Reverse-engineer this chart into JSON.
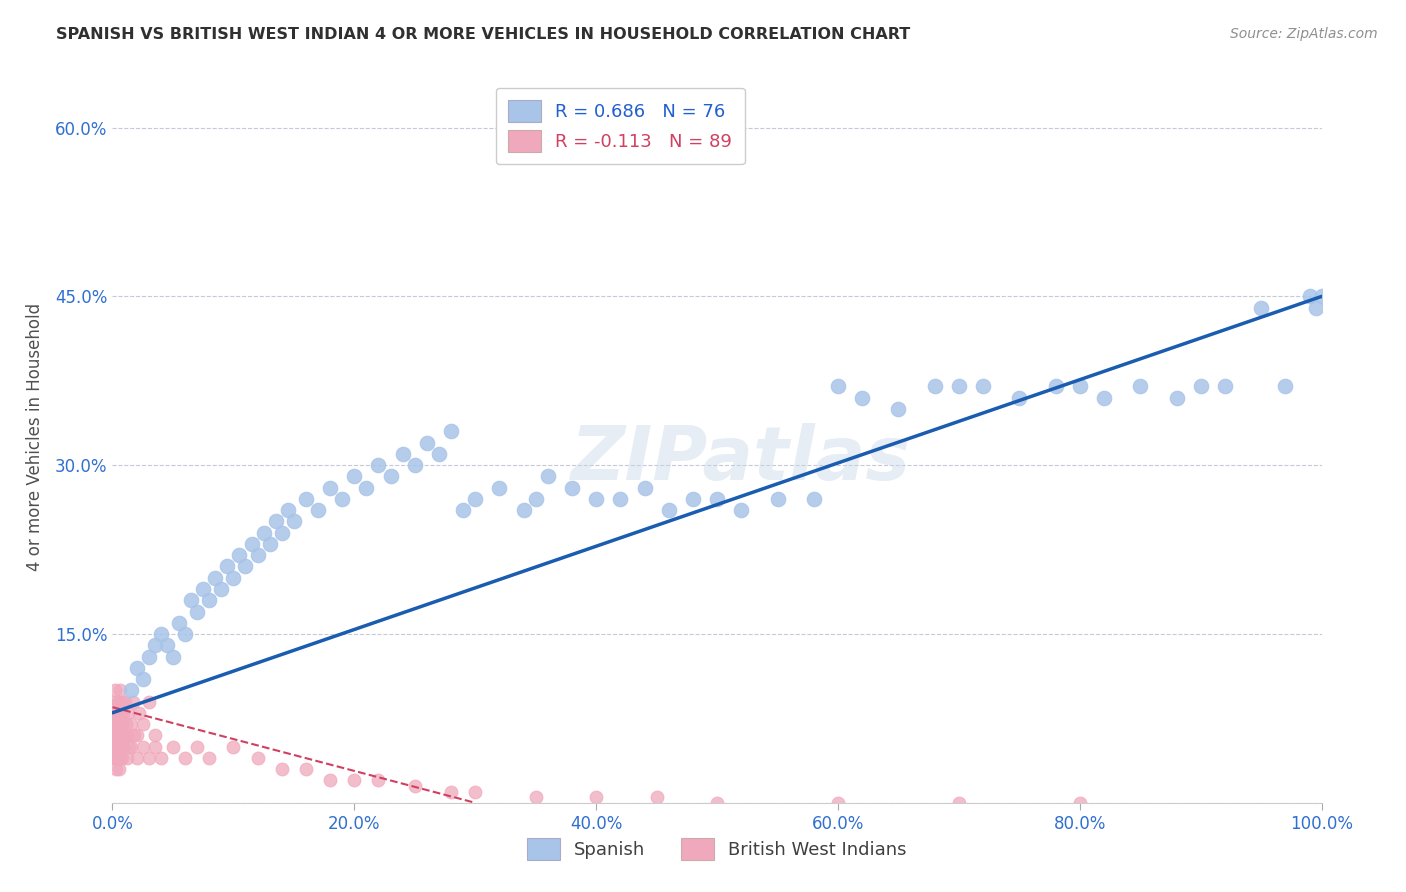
{
  "title": "SPANISH VS BRITISH WEST INDIAN 4 OR MORE VEHICLES IN HOUSEHOLD CORRELATION CHART",
  "source": "Source: ZipAtlas.com",
  "ylabel": "4 or more Vehicles in Household",
  "xlim": [
    0.0,
    100.0
  ],
  "ylim": [
    0.0,
    65.0
  ],
  "xtick_vals": [
    0,
    20,
    40,
    60,
    80,
    100
  ],
  "ytick_vals": [
    0,
    15,
    30,
    45,
    60
  ],
  "xtick_labels": [
    "0.0%",
    "20.0%",
    "40.0%",
    "60.0%",
    "80.0%",
    "100.0%"
  ],
  "ytick_labels": [
    "",
    "15.0%",
    "30.0%",
    "45.0%",
    "60.0%"
  ],
  "blue_R": 0.686,
  "blue_N": 76,
  "pink_R": -0.113,
  "pink_N": 89,
  "legend_labels": [
    "Spanish",
    "British West Indians"
  ],
  "blue_scatter_color": "#a8c4e8",
  "pink_scatter_color": "#f0a8bc",
  "blue_line_color": "#1a5cb0",
  "pink_line_color": "#d04060",
  "watermark": "ZIPatlas",
  "blue_scatter_x": [
    1.5,
    2.0,
    2.5,
    3.0,
    3.5,
    4.0,
    4.5,
    5.0,
    5.5,
    6.0,
    6.5,
    7.0,
    7.5,
    8.0,
    8.5,
    9.0,
    9.5,
    10.0,
    10.5,
    11.0,
    11.5,
    12.0,
    12.5,
    13.0,
    13.5,
    14.0,
    14.5,
    15.0,
    16.0,
    17.0,
    18.0,
    19.0,
    20.0,
    21.0,
    22.0,
    23.0,
    24.0,
    25.0,
    26.0,
    27.0,
    28.0,
    29.0,
    30.0,
    32.0,
    34.0,
    35.0,
    36.0,
    38.0,
    40.0,
    42.0,
    44.0,
    46.0,
    48.0,
    50.0,
    52.0,
    55.0,
    58.0,
    60.0,
    62.0,
    65.0,
    68.0,
    70.0,
    72.0,
    75.0,
    78.0,
    80.0,
    82.0,
    85.0,
    88.0,
    90.0,
    92.0,
    95.0,
    97.0,
    99.0,
    99.5,
    100.0
  ],
  "blue_scatter_y": [
    10.0,
    12.0,
    11.0,
    13.0,
    14.0,
    15.0,
    14.0,
    13.0,
    16.0,
    15.0,
    18.0,
    17.0,
    19.0,
    18.0,
    20.0,
    19.0,
    21.0,
    20.0,
    22.0,
    21.0,
    23.0,
    22.0,
    24.0,
    23.0,
    25.0,
    24.0,
    26.0,
    25.0,
    27.0,
    26.0,
    28.0,
    27.0,
    29.0,
    28.0,
    30.0,
    29.0,
    31.0,
    30.0,
    32.0,
    31.0,
    33.0,
    26.0,
    27.0,
    28.0,
    26.0,
    27.0,
    29.0,
    28.0,
    27.0,
    27.0,
    28.0,
    26.0,
    27.0,
    27.0,
    26.0,
    27.0,
    27.0,
    37.0,
    36.0,
    35.0,
    37.0,
    37.0,
    37.0,
    36.0,
    37.0,
    37.0,
    36.0,
    37.0,
    36.0,
    37.0,
    37.0,
    44.0,
    37.0,
    45.0,
    44.0,
    45.0
  ],
  "pink_scatter_x": [
    0.05,
    0.08,
    0.1,
    0.12,
    0.15,
    0.18,
    0.2,
    0.22,
    0.25,
    0.28,
    0.3,
    0.33,
    0.35,
    0.38,
    0.4,
    0.43,
    0.45,
    0.48,
    0.5,
    0.52,
    0.55,
    0.58,
    0.6,
    0.63,
    0.65,
    0.68,
    0.7,
    0.75,
    0.8,
    0.85,
    0.9,
    0.95,
    1.0,
    1.1,
    1.2,
    1.3,
    1.4,
    1.5,
    1.7,
    2.0,
    2.2,
    2.5,
    3.0,
    3.5,
    0.1,
    0.15,
    0.2,
    0.25,
    0.3,
    0.35,
    0.4,
    0.45,
    0.5,
    0.55,
    0.6,
    0.65,
    0.7,
    0.8,
    0.9,
    1.0,
    1.2,
    1.5,
    1.8,
    2.0,
    2.5,
    3.0,
    3.5,
    4.0,
    5.0,
    6.0,
    7.0,
    8.0,
    10.0,
    12.0,
    14.0,
    16.0,
    18.0,
    20.0,
    22.0,
    25.0,
    28.0,
    30.0,
    35.0,
    40.0,
    45.0,
    50.0,
    60.0,
    70.0,
    80.0
  ],
  "pink_scatter_y": [
    7.0,
    6.0,
    8.0,
    5.0,
    9.0,
    4.0,
    10.0,
    6.0,
    3.0,
    8.0,
    5.0,
    7.0,
    6.0,
    8.0,
    5.0,
    9.0,
    4.0,
    7.0,
    8.0,
    6.0,
    9.0,
    5.0,
    7.0,
    10.0,
    6.0,
    8.0,
    7.0,
    9.0,
    7.0,
    5.0,
    8.0,
    6.0,
    9.0,
    7.0,
    6.0,
    8.0,
    5.0,
    7.0,
    9.0,
    6.0,
    8.0,
    7.0,
    9.0,
    6.0,
    4.0,
    5.0,
    6.0,
    7.0,
    8.0,
    4.0,
    5.0,
    6.0,
    7.0,
    3.0,
    4.0,
    5.0,
    6.0,
    4.0,
    5.0,
    6.0,
    4.0,
    5.0,
    6.0,
    4.0,
    5.0,
    4.0,
    5.0,
    4.0,
    5.0,
    4.0,
    5.0,
    4.0,
    5.0,
    4.0,
    3.0,
    3.0,
    2.0,
    2.0,
    2.0,
    1.5,
    1.0,
    1.0,
    0.5,
    0.5,
    0.5,
    0.0,
    0.0,
    0.0,
    0.0
  ],
  "blue_line_x": [
    0.0,
    100.0
  ],
  "blue_line_y": [
    8.0,
    45.0
  ],
  "pink_line_x": [
    0.0,
    30.0
  ],
  "pink_line_y": [
    8.5,
    0.0
  ],
  "grid_color": "#c0c4d4",
  "title_color": "#303030",
  "axis_label_color": "#505050",
  "tick_color": "#3070d0",
  "legend_r_blue": "#2060d0",
  "legend_r_pink": "#d04060",
  "legend_box_blue": "#a8c4e8",
  "legend_box_pink": "#f0a8bc"
}
